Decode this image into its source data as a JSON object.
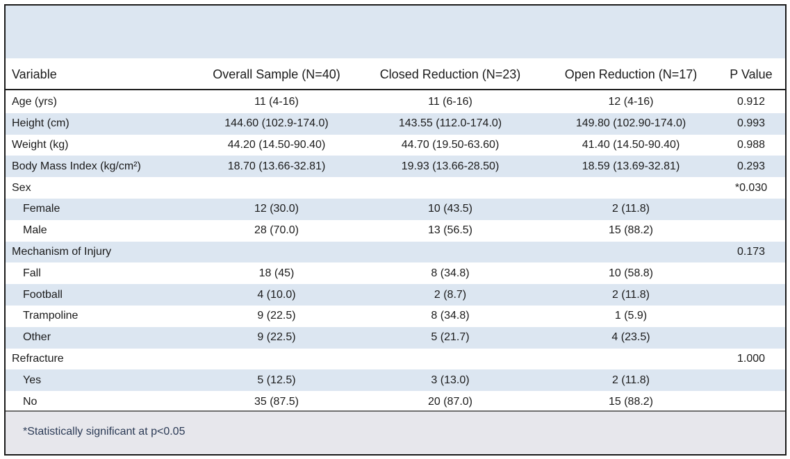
{
  "table": {
    "headers": [
      "Variable",
      "Overall Sample (N=40)",
      "Closed Reduction (N=23)",
      "Open Reduction (N=17)",
      "P Value"
    ],
    "rows": [
      {
        "variable": "Age (yrs)",
        "overall": "11 (4-16)",
        "closed": "11 (6-16)",
        "open": "12 (4-16)",
        "p": "0.912",
        "indent": false
      },
      {
        "variable": "Height (cm)",
        "overall": "144.60 (102.9-174.0)",
        "closed": "143.55 (112.0-174.0)",
        "open": "149.80 (102.90-174.0)",
        "p": "0.993",
        "indent": false
      },
      {
        "variable": "Weight (kg)",
        "overall": "44.20 (14.50-90.40)",
        "closed": "44.70 (19.50-63.60)",
        "open": "41.40 (14.50-90.40)",
        "p": "0.988",
        "indent": false
      },
      {
        "variable": "Body Mass Index (kg/cm²)",
        "overall": "18.70 (13.66-32.81)",
        "closed": "19.93 (13.66-28.50)",
        "open": "18.59 (13.69-32.81)",
        "p": "0.293",
        "indent": false
      },
      {
        "variable": "Sex",
        "overall": "",
        "closed": "",
        "open": "",
        "p": "*0.030",
        "indent": false
      },
      {
        "variable": "Female",
        "overall": "12 (30.0)",
        "closed": "10 (43.5)",
        "open": "2 (11.8)",
        "p": "",
        "indent": true
      },
      {
        "variable": "Male",
        "overall": "28 (70.0)",
        "closed": "13 (56.5)",
        "open": "15 (88.2)",
        "p": "",
        "indent": true
      },
      {
        "variable": "Mechanism of Injury",
        "overall": "",
        "closed": "",
        "open": "",
        "p": "0.173",
        "indent": false
      },
      {
        "variable": "Fall",
        "overall": "18 (45)",
        "closed": "8 (34.8)",
        "open": "10 (58.8)",
        "p": "",
        "indent": true
      },
      {
        "variable": "Football",
        "overall": "4 (10.0)",
        "closed": "2 (8.7)",
        "open": "2 (11.8)",
        "p": "",
        "indent": true
      },
      {
        "variable": "Trampoline",
        "overall": "9 (22.5)",
        "closed": "8 (34.8)",
        "open": "1 (5.9)",
        "p": "",
        "indent": true
      },
      {
        "variable": "Other",
        "overall": "9 (22.5)",
        "closed": "5 (21.7)",
        "open": "4 (23.5)",
        "p": "",
        "indent": true
      },
      {
        "variable": "Refracture",
        "overall": "",
        "closed": "",
        "open": "",
        "p": "1.000",
        "indent": false
      },
      {
        "variable": "Yes",
        "overall": "5 (12.5)",
        "closed": "3 (13.0)",
        "open": "2 (11.8)",
        "p": "",
        "indent": true
      },
      {
        "variable": "No",
        "overall": "35 (87.5)",
        "closed": "20 (87.0)",
        "open": "15 (88.2)",
        "p": "",
        "indent": true
      }
    ]
  },
  "footnote": "*Statistically significant at p<0.05",
  "colors": {
    "band": "#dce6f1",
    "footer": "#e7e7ec",
    "footnote_text": "#2b3a55",
    "border": "#1a1a1a"
  }
}
